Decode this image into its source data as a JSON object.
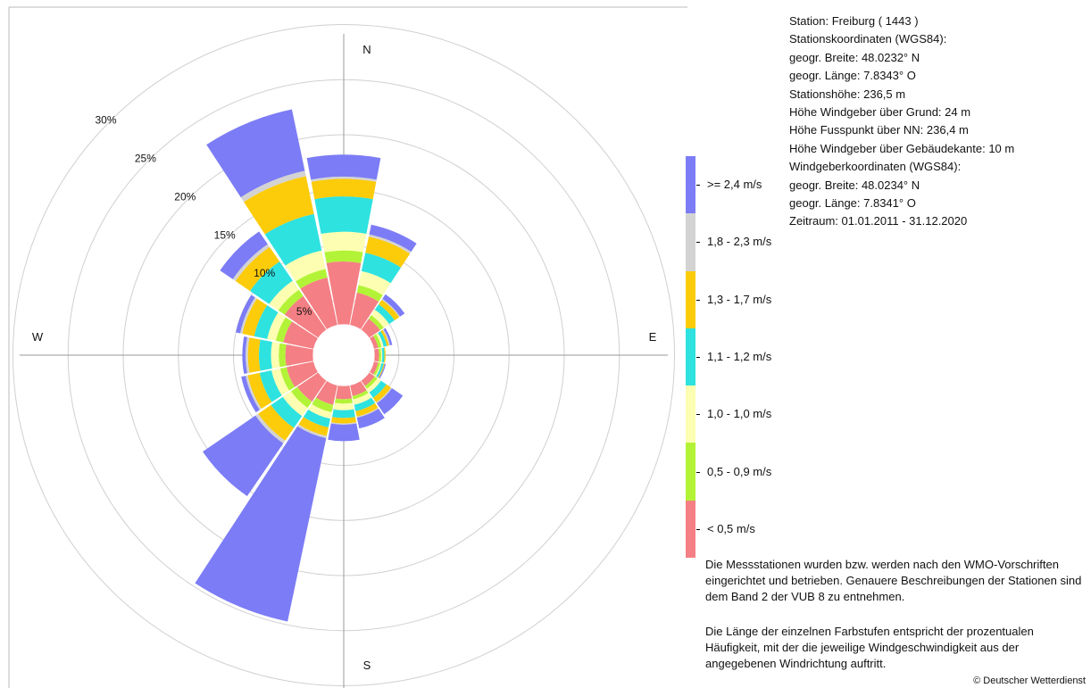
{
  "station": {
    "lines": [
      "Station:  Freiburg  ( 1443 )",
      "Stationskoordinaten (WGS84):",
      "geogr. Breite: 48.0232° N",
      "geogr. Länge:   7.8343° O",
      "Stationshöhe: 236,5 m",
      "Höhe Windgeber über Grund: 24 m",
      "Höhe Fusspunkt über NN: 236,4 m",
      "Höhe Windgeber über Gebäudekante: 10 m",
      "Windgeberkoordinaten (WGS84):",
      "geogr. Breite: 48.0234° N",
      "geogr. Länge:   7.8341° O",
      "Zeitraum: 01.01.2011 - 31.12.2020"
    ]
  },
  "notes": {
    "paragraph1": "Die Messstationen wurden bzw. werden nach den WMO-Vorschriften eingerichtet und betrieben. Genauere Beschreibungen der Stationen sind dem Band 2 der VUB 8 zu entnehmen.",
    "paragraph2": "Die Länge der einzelnen Farbstufen entspricht der prozentualen Häufigkeit, mit der die jeweilige Windgeschwindigkeit aus der angegebenen Windrichtung auftritt."
  },
  "copyright": "© Deutscher Wetterdienst",
  "colors": {
    "speed_classes": [
      "#f47f84",
      "#b3f337",
      "#fdfeb1",
      "#2ee2e0",
      "#fccb0a",
      "#d3d3d3",
      "#7c7cf6"
    ],
    "grid": "#d0d0d0",
    "axis": "#999999"
  },
  "chart_data": {
    "type": "wind-rose",
    "directions": [
      "N",
      "NNE",
      "NE",
      "ENE",
      "E",
      "ESE",
      "SE",
      "SSE",
      "S",
      "SSW",
      "SW",
      "WSW",
      "W",
      "WNW",
      "NW",
      "NNW"
    ],
    "direction_angles_deg": [
      0,
      22.5,
      45,
      67.5,
      90,
      112.5,
      135,
      157.5,
      180,
      202.5,
      225,
      247.5,
      270,
      292.5,
      315,
      337.5
    ],
    "compass_labels": [
      "N",
      "E",
      "S",
      "W"
    ],
    "radial_ticks": [
      "5%",
      "10%",
      "15%",
      "20%",
      "25%",
      "30%"
    ],
    "radial_tick_values": [
      5,
      10,
      15,
      20,
      25,
      30
    ],
    "calm_radius_percent": 2.8,
    "speed_classes": [
      "< 0,5 m/s",
      "0,5 - 0,9 m/s",
      "1,0 - 1,0 m/s",
      "1,1 - 1,2 m/s",
      "1,3 - 1,7 m/s",
      "1,8 - 2,3 m/s",
      ">= 2,4 m/s"
    ],
    "series": [
      {
        "name": "< 0,5 m/s",
        "values": [
          5.7,
          3.0,
          1.2,
          0.4,
          0.4,
          0.4,
          0.6,
          1.0,
          1.2,
          1.8,
          2.3,
          2.5,
          2.5,
          2.8,
          3.7,
          4.4
        ]
      },
      {
        "name": "0,5 - 0,9 m/s",
        "values": [
          1.0,
          0.7,
          0.4,
          0.3,
          0.2,
          0.2,
          0.3,
          0.3,
          0.4,
          0.7,
          0.7,
          0.6,
          0.6,
          0.7,
          0.7,
          0.8
        ]
      },
      {
        "name": "1,0 - 1,0 m/s",
        "values": [
          1.7,
          1.3,
          0.6,
          0.2,
          0.1,
          0.1,
          0.4,
          0.5,
          0.6,
          0.6,
          0.9,
          0.8,
          0.7,
          0.8,
          1.0,
          1.7
        ]
      },
      {
        "name": "1,1 - 1,2 m/s",
        "values": [
          3.2,
          1.7,
          0.6,
          0.3,
          0.2,
          0.2,
          0.6,
          0.6,
          0.7,
          0.8,
          1.3,
          1.1,
          1.1,
          1.2,
          2.1,
          3.4
        ]
      },
      {
        "name": "1,3 - 1,7 m/s",
        "values": [
          1.6,
          1.5,
          0.5,
          0.2,
          0.1,
          0.1,
          0.5,
          0.5,
          0.5,
          0.8,
          1.4,
          1.1,
          1.0,
          1.1,
          1.6,
          3.5
        ]
      },
      {
        "name": "1,8 - 2,3 m/s",
        "values": [
          0.2,
          0.2,
          0.1,
          0.1,
          0.0,
          0.0,
          0.1,
          0.1,
          0.1,
          0.2,
          0.3,
          0.2,
          0.2,
          0.2,
          0.3,
          0.5
        ]
      },
      {
        "name": ">= 2,4 m/s",
        "values": [
          2.0,
          0.9,
          0.5,
          0.2,
          0.0,
          0.1,
          1.2,
          1.0,
          1.5,
          17.0,
          5.8,
          0.4,
          0.3,
          0.4,
          1.4,
          5.7
        ]
      }
    ],
    "legend_placement": "right",
    "grid": true
  }
}
